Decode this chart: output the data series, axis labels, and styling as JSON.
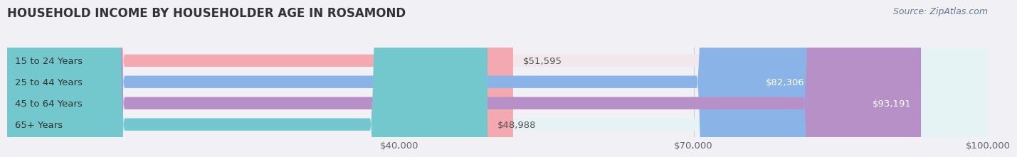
{
  "title": "HOUSEHOLD INCOME BY HOUSEHOLDER AGE IN ROSAMOND",
  "source": "Source: ZipAtlas.com",
  "categories": [
    "15 to 24 Years",
    "25 to 44 Years",
    "45 to 64 Years",
    "65+ Years"
  ],
  "values": [
    51595,
    82306,
    93191,
    48988
  ],
  "bar_colors": [
    "#f4a8b0",
    "#8ab4e8",
    "#b890c8",
    "#72c8cc"
  ],
  "bar_bg_colors": [
    "#f0e8ea",
    "#e8edf8",
    "#ece8f2",
    "#e5f3f5"
  ],
  "value_labels": [
    "$51,595",
    "$82,306",
    "$93,191",
    "$48,988"
  ],
  "xmin": 0,
  "xmax": 100000,
  "xticks": [
    40000,
    70000,
    100000
  ],
  "xtick_labels": [
    "$40,000",
    "$70,000",
    "$100,000"
  ],
  "bg_color": "#f0f0f5",
  "title_fontsize": 12,
  "label_fontsize": 9.5,
  "source_fontsize": 9
}
